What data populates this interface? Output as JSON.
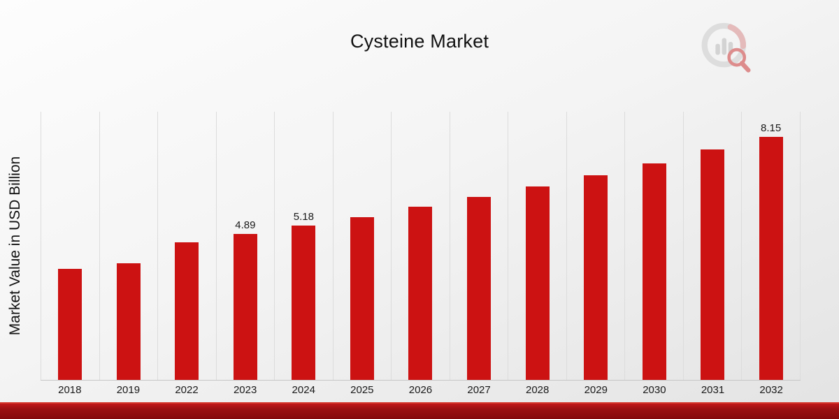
{
  "title": "Cysteine Market",
  "ylabel": "Market Value in USD Billion",
  "logo_name": "brand-logo-chart-magnifier",
  "colors": {
    "bar": "#cc1212",
    "footer_accent": "#9b1012",
    "gridline": "#dcdcdc",
    "background_top": "#fdfdfd",
    "background_bottom": "#e3e3e3"
  },
  "chart_data": {
    "type": "bar",
    "title": "Cysteine Market",
    "xlabel": "",
    "ylabel": "Market Value in USD Billion",
    "categories": [
      "2018",
      "2019",
      "2022",
      "2023",
      "2024",
      "2025",
      "2026",
      "2027",
      "2028",
      "2029",
      "2030",
      "2031",
      "2032"
    ],
    "values": [
      3.73,
      3.91,
      4.61,
      4.89,
      5.18,
      5.47,
      5.82,
      6.15,
      6.5,
      6.87,
      7.27,
      7.73,
      8.15
    ],
    "data_labels": [
      "",
      "",
      "",
      "4.89",
      "5.18",
      "",
      "",
      "",
      "",
      "",
      "",
      "",
      "8.15"
    ],
    "ylim": [
      0,
      9
    ],
    "bar_color": "#cc1212",
    "grid": "vertical-only",
    "legend": "none"
  }
}
